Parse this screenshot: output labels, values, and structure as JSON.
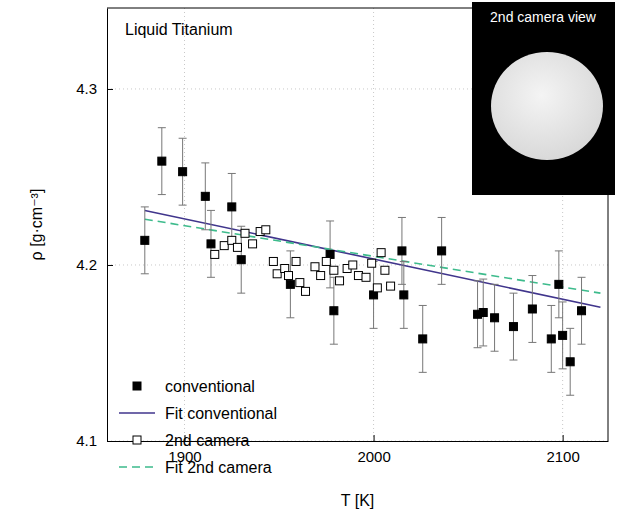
{
  "chart_data": {
    "type": "scatter",
    "annotation": "Liquid Titanium",
    "x_label": "T [K]",
    "y_label": "ρ [g·cm⁻³]",
    "xlim": [
      1859,
      2124
    ],
    "ylim": [
      4.1,
      4.346
    ],
    "xticks": [
      1900,
      2000,
      2100
    ],
    "yticks": [
      4.1,
      4.2,
      4.3
    ],
    "grid": true,
    "legend": "lower left",
    "series": [
      {
        "name": "conventional",
        "type": "scatter",
        "marker": "square",
        "color": "#000000",
        "x": [
          1879,
          1888,
          1899,
          1911,
          1914,
          1925,
          1930,
          1956,
          1977,
          1979,
          2000,
          2015,
          2016,
          2026,
          2036,
          2055,
          2058,
          2064,
          2074,
          2084,
          2094,
          2098,
          2100,
          2104,
          2110
        ],
        "values": [
          4.214,
          4.259,
          4.253,
          4.239,
          4.212,
          4.233,
          4.203,
          4.189,
          4.206,
          4.174,
          4.183,
          4.208,
          4.183,
          4.158,
          4.208,
          4.172,
          4.173,
          4.17,
          4.165,
          4.175,
          4.158,
          4.189,
          4.16,
          4.145,
          4.174
        ],
        "errors": [
          0.019,
          0.019,
          0.019,
          0.019,
          0.019,
          0.019,
          0.019,
          0.019,
          0.019,
          0.019,
          0.019,
          0.019,
          0.019,
          0.019,
          0.019,
          0.019,
          0.019,
          0.019,
          0.019,
          0.019,
          0.019,
          0.019,
          0.019,
          0.019,
          0.019
        ]
      },
      {
        "name": "Fit conventional",
        "type": "line",
        "line_style": "solid",
        "color": "#40358c",
        "x": [
          1879,
          2120
        ],
        "values": [
          4.231,
          4.176
        ]
      },
      {
        "name": "2nd camera",
        "type": "scatter",
        "marker": "open-square",
        "color": "#000000",
        "x": [
          1916,
          1921,
          1925,
          1928,
          1932,
          1936,
          1940,
          1943,
          1947,
          1949,
          1953,
          1955,
          1959,
          1961,
          1964,
          1969,
          1972,
          1975,
          1979,
          1982,
          1986,
          1989,
          1992,
          1996,
          1999,
          2002,
          2004,
          2006,
          2009
        ],
        "values": [
          4.206,
          4.211,
          4.214,
          4.21,
          4.218,
          4.212,
          4.219,
          4.22,
          4.202,
          4.195,
          4.198,
          4.194,
          4.202,
          4.19,
          4.185,
          4.199,
          4.194,
          4.202,
          4.197,
          4.191,
          4.198,
          4.2,
          4.194,
          4.193,
          4.201,
          4.187,
          4.207,
          4.197,
          4.188
        ]
      },
      {
        "name": "Fit 2nd camera",
        "type": "line",
        "line_style": "dashed",
        "color": "#3dbb8c",
        "x": [
          1879,
          2120
        ],
        "values": [
          4.226,
          4.184
        ]
      }
    ],
    "inset": {
      "title": "2nd camera view"
    }
  }
}
